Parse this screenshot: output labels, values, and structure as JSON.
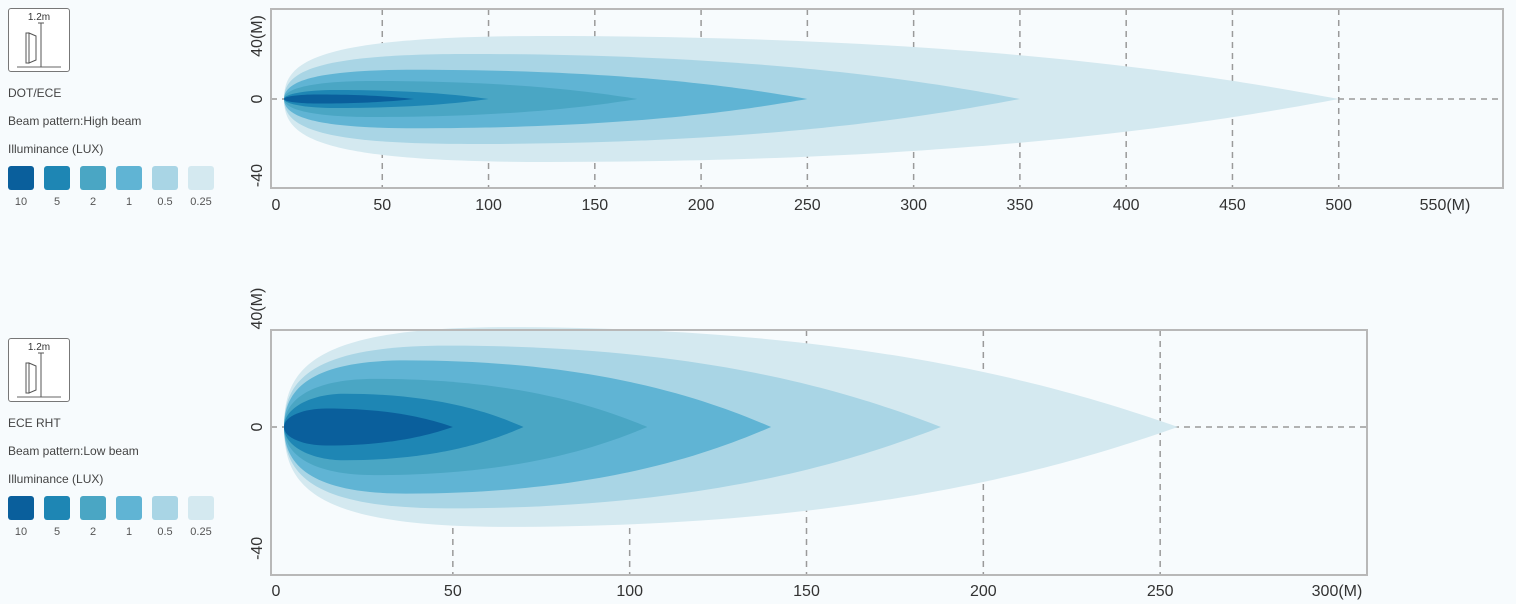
{
  "colors": {
    "levels": [
      "#0a5f9c",
      "#1e86b4",
      "#4aa6c4",
      "#60b4d4",
      "#a9d5e5",
      "#d4e9f0"
    ],
    "grid": "#9a9a9a",
    "frame": "#b8b8b8"
  },
  "panels": [
    {
      "icon": "lamp-mount-icon",
      "mount_height": "1.2m",
      "standard": "DOT/ECE",
      "pattern": "Beam pattern:High beam",
      "illuminance_label": "Illuminance (LUX)",
      "legend_values": [
        "10",
        "5",
        "2",
        "1",
        "0.5",
        "0.25"
      ]
    },
    {
      "icon": "lamp-mount-icon",
      "mount_height": "1.2m",
      "standard": "ECE RHT",
      "pattern": "Beam pattern:Low beam",
      "illuminance_label": "Illuminance (LUX)",
      "legend_values": [
        "10",
        "5",
        "2",
        "1",
        "0.5",
        "0.25"
      ]
    }
  ],
  "chart_data": [
    {
      "type": "area",
      "title": "",
      "x_unit": "(M)",
      "y_unit": "(M)",
      "xlim": [
        0,
        550
      ],
      "ylim": [
        -40,
        40
      ],
      "x_ticks": [
        "0",
        "50",
        "100",
        "150",
        "200",
        "250",
        "300",
        "350",
        "400",
        "450",
        "500",
        "550"
      ],
      "y_ticks": [
        "40",
        "0",
        "-40"
      ],
      "grid": true,
      "series": [
        {
          "name": "0.25",
          "reach": 500,
          "half_width": 28
        },
        {
          "name": "0.5",
          "reach": 350,
          "half_width": 20
        },
        {
          "name": "1",
          "reach": 250,
          "half_width": 13
        },
        {
          "name": "2",
          "reach": 170,
          "half_width": 8
        },
        {
          "name": "5",
          "reach": 100,
          "half_width": 4
        },
        {
          "name": "10",
          "reach": 65,
          "half_width": 2
        }
      ]
    },
    {
      "type": "area",
      "title": "",
      "x_unit": "(M)",
      "y_unit": "(M)",
      "xlim": [
        0,
        300
      ],
      "ylim": [
        -40,
        40
      ],
      "x_ticks": [
        "0",
        "50",
        "100",
        "150",
        "200",
        "250",
        "300"
      ],
      "y_ticks": [
        "40",
        "0",
        "-40"
      ],
      "grid": true,
      "series": [
        {
          "name": "0.25",
          "reach": 255,
          "half_width": 27
        },
        {
          "name": "0.5",
          "reach": 188,
          "half_width": 22
        },
        {
          "name": "1",
          "reach": 140,
          "half_width": 18
        },
        {
          "name": "2",
          "reach": 105,
          "half_width": 13
        },
        {
          "name": "5",
          "reach": 70,
          "half_width": 9
        },
        {
          "name": "10",
          "reach": 50,
          "half_width": 5
        }
      ]
    }
  ]
}
